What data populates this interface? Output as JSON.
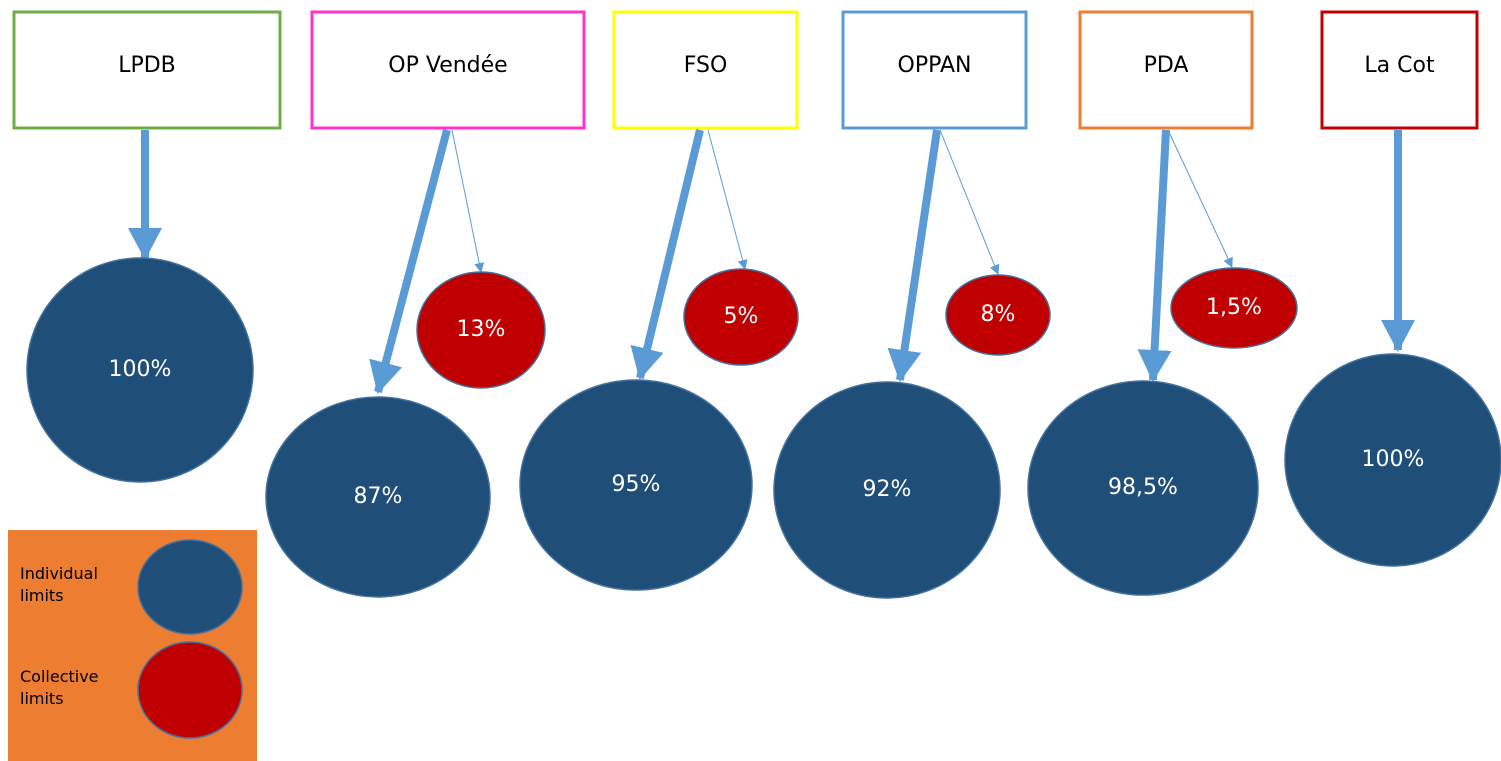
{
  "organizations": [
    {
      "name": "LPDB",
      "individual": "100%"
    },
    {
      "name": "OP Vendée",
      "individual": "87%",
      "collective": "13%"
    },
    {
      "name": "FSO",
      "individual": "95%",
      "collective": "5%"
    },
    {
      "name": "OPPAN",
      "individual": "92%",
      "collective": "8%"
    },
    {
      "name": "PDA",
      "individual": "98,5%",
      "collective": "1,5%"
    },
    {
      "name": "La Cot",
      "individual": "100%"
    }
  ],
  "legend": {
    "individual": "Individual limits",
    "collective": "Collective limits"
  }
}
